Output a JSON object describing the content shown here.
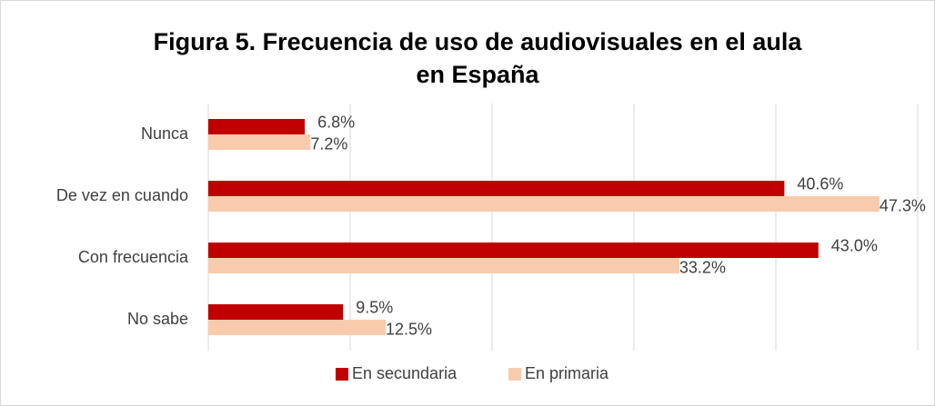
{
  "chart_data": {
    "type": "hbar",
    "title": "Figura 5. Frecuencia de uso de audiovisuales en el aula en España",
    "categories": [
      "Nunca",
      "De vez en cuando",
      "Con frecuencia",
      "No sabe"
    ],
    "series": [
      {
        "name": "En secundaria",
        "color": "#c00000",
        "values": [
          6.8,
          40.6,
          43.0,
          9.5
        ],
        "value_labels": [
          "6.8%",
          "40.6%",
          "43.0%",
          "9.5%"
        ]
      },
      {
        "name": "En primaria",
        "color": "#f8cbad",
        "values": [
          7.2,
          47.3,
          33.2,
          12.5
        ],
        "value_labels": [
          "7.2%",
          "47.3%",
          "33.2%",
          "12.5%"
        ]
      }
    ],
    "xlim": [
      0,
      50
    ],
    "xticks": [
      0,
      10,
      20,
      30,
      40,
      50
    ],
    "grid": true,
    "legend": "bottom"
  }
}
